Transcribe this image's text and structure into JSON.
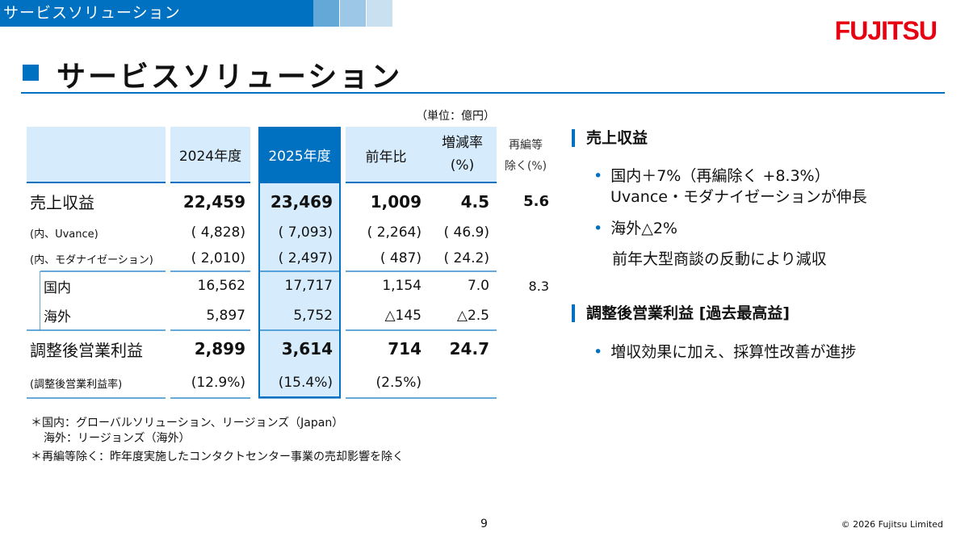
{
  "header": {
    "section": "サービスソリューション",
    "title": "サービスソリューション",
    "logo": "FUJITSU",
    "accent": "#0070c0"
  },
  "table": {
    "unit": "（単位：億円）",
    "columns": [
      "",
      "2024年度",
      "2025年度",
      "前年比",
      "増減率\n(%)",
      "再編等\n除く(%)"
    ],
    "col_labels": {
      "y2024": "2024年度",
      "y2025": "2025年度",
      "yoy": "前年比",
      "rate1": "増減率",
      "rate2": "(%)",
      "ex1": "再編等",
      "ex2": "除く(%)"
    },
    "rows": [
      {
        "label": "売上収益",
        "y2024": "22,459",
        "y2025": "23,469",
        "yoy": "1,009",
        "rate": "4.5",
        "ex": "5.6"
      },
      {
        "label": "(内、Uvance)",
        "y2024": "( 4,828)",
        "y2025": "( 7,093)",
        "yoy": "( 2,264)",
        "rate": "( 46.9)",
        "ex": ""
      },
      {
        "label": "(内、モダナイゼーション)",
        "y2024": "( 2,010)",
        "y2025": "( 2,497)",
        "yoy": "( 487)",
        "rate": "( 24.2)",
        "ex": ""
      },
      {
        "label": "国内",
        "y2024": "16,562",
        "y2025": "17,717",
        "yoy": "1,154",
        "rate": "7.0",
        "ex": "8.3"
      },
      {
        "label": "海外",
        "y2024": "5,897",
        "y2025": "5,752",
        "yoy": "△145",
        "rate": "△2.5",
        "ex": ""
      },
      {
        "label": "調整後営業利益",
        "y2024": "2,899",
        "y2025": "3,614",
        "yoy": "714",
        "rate": "24.7",
        "ex": ""
      },
      {
        "label": "(調整後営業利益率)",
        "y2024": "(12.9%)",
        "y2025": "(15.4%)",
        "yoy": "(2.5%)",
        "rate": "",
        "ex": ""
      }
    ]
  },
  "notes": [
    "＊国内：グローバルソリューション、リージョンズ（Japan）",
    "海外：リージョンズ（海外）",
    "＊再編等除く：昨年度実施したコンタクトセンター事業の売却影響を除く"
  ],
  "right": {
    "h1": "売上収益",
    "b1": "国内＋7%（再編除く +8.3%）",
    "b1b": "Uvance・モダナイゼーションが伸長",
    "b2": "海外△2%",
    "b2b": "前年大型商談の反動により減収",
    "h2": "調整後営業利益 [過去最高益]",
    "b3": "増収効果に加え、採算性改善が進捗"
  },
  "footer": {
    "page": "9",
    "copyright": "© 2026 Fujitsu Limited"
  }
}
